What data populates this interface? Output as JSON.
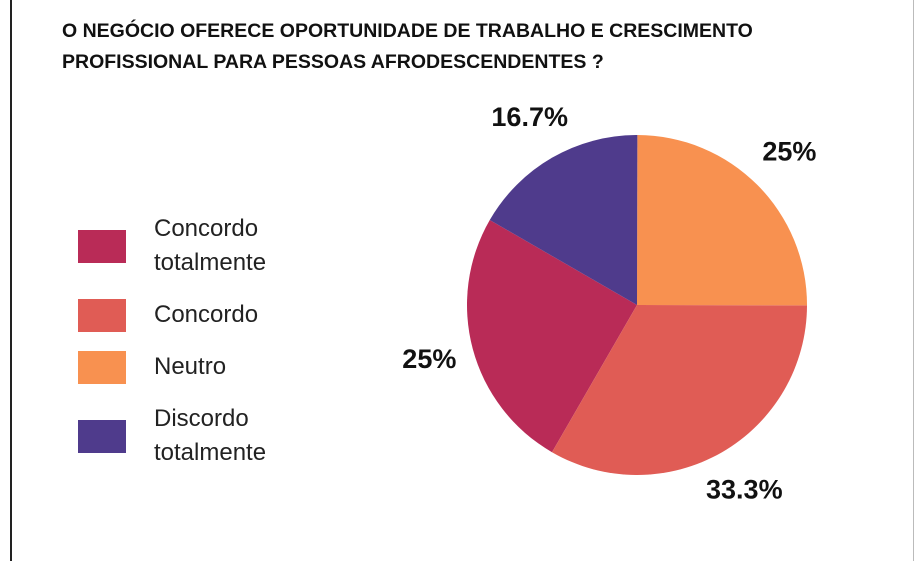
{
  "chart_data": {
    "type": "pie",
    "title": "O NEGÓCIO OFERECE OPORTUNIDADE DE TRABALHO E CRESCIMENTO PROFISSIONAL PARA PESSOAS AFRODESCENDENTES ?",
    "categories": [
      "Concordo totalmente",
      "Concordo",
      "Neutro",
      "Discordo totalmente"
    ],
    "values": [
      25,
      33.3,
      25,
      16.7
    ],
    "value_labels": [
      "25%",
      "33.3%",
      "25%",
      "16.7%"
    ],
    "colors": [
      "#b92b57",
      "#e05c55",
      "#f89150",
      "#4f3b8c"
    ],
    "legend": "left"
  }
}
